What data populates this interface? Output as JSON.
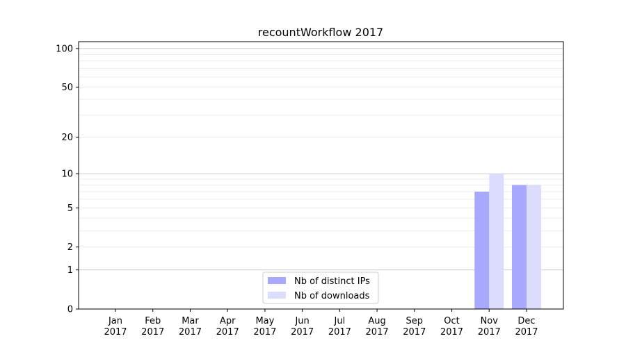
{
  "chart_data": {
    "type": "bar",
    "title": "recountWorkflow 2017",
    "xlabel": "",
    "ylabel": "",
    "yscale": "log(1+y)",
    "ylim": [
      0,
      113
    ],
    "yticks": [
      0,
      1,
      2,
      5,
      10,
      20,
      50,
      100
    ],
    "grid": true,
    "categories": [
      "Jan\n2017",
      "Feb\n2017",
      "Mar\n2017",
      "Apr\n2017",
      "May\n2017",
      "Jun\n2017",
      "Jul\n2017",
      "Aug\n2017",
      "Sep\n2017",
      "Oct\n2017",
      "Nov\n2017",
      "Dec\n2017"
    ],
    "series": [
      {
        "name": "Nb of distinct IPs",
        "color": "#a8a8ff",
        "values": [
          0,
          0,
          0,
          0,
          0,
          0,
          0,
          0,
          0,
          0,
          7,
          8
        ]
      },
      {
        "name": "Nb of downloads",
        "color": "#dcdcff",
        "values": [
          0,
          0,
          0,
          0,
          0,
          0,
          0,
          0,
          0,
          0,
          10,
          8
        ]
      }
    ],
    "legend": "bottom-center"
  }
}
